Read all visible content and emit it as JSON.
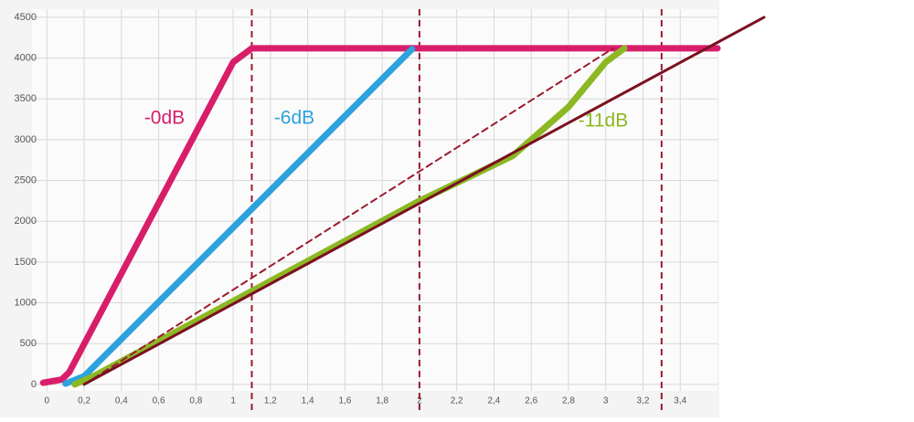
{
  "chart_data": {
    "type": "line",
    "xlim": [
      -0.08,
      3.6
    ],
    "ylim": [
      -80,
      4600
    ],
    "xticks": [
      0,
      {
        "value": 0.2,
        "label": "0,2"
      },
      {
        "value": 0.4,
        "label": "0,4"
      },
      {
        "value": 0.6,
        "label": "0,6"
      },
      {
        "value": 0.8,
        "label": "0,8"
      },
      1,
      {
        "value": 1.2,
        "label": "1,2"
      },
      {
        "value": 1.4,
        "label": "1,4"
      },
      {
        "value": 1.6,
        "label": "1,6"
      },
      {
        "value": 1.8,
        "label": "1,8"
      },
      2,
      {
        "value": 2.2,
        "label": "2,2"
      },
      {
        "value": 2.4,
        "label": "2,4"
      },
      {
        "value": 2.6,
        "label": "2,6"
      },
      {
        "value": 2.8,
        "label": "2,8"
      },
      3,
      {
        "value": 3.2,
        "label": "3,2"
      },
      {
        "value": 3.4,
        "label": "3,4"
      }
    ],
    "yticks": [
      0,
      500,
      1000,
      1500,
      2000,
      2500,
      3000,
      3500,
      4000,
      4500
    ],
    "grid": true,
    "vlines": [
      1.1,
      2,
      3.3
    ],
    "vline_color": "#9b1b30",
    "series": [
      {
        "name": "-0dB",
        "color": "#d81e6a",
        "width": 7,
        "x": [
          -0.02,
          0.08,
          0.12,
          1.0,
          1.1,
          3.6
        ],
        "values": [
          20,
          60,
          150,
          3950,
          4120,
          4120
        ]
      },
      {
        "name": "-6dB",
        "color": "#2da2dc",
        "width": 7,
        "x": [
          0.1,
          0.2,
          1.96
        ],
        "values": [
          10,
          100,
          4110
        ]
      },
      {
        "name": "-11dB",
        "color": "#8cb823",
        "width": 7,
        "x": [
          0.15,
          0.25,
          2.0,
          2.5,
          2.8,
          3.0,
          3.1
        ],
        "values": [
          0,
          100,
          2250,
          2800,
          3400,
          3950,
          4120
        ]
      },
      {
        "color": "#9b1b30",
        "width": 2,
        "dash": true,
        "x": [
          0.2,
          3.04
        ],
        "values": [
          0,
          4120
        ]
      },
      {
        "color": "#7b1020",
        "width": 3,
        "x": [
          0.2,
          3.85
        ],
        "values": [
          0,
          4500
        ]
      }
    ]
  }
}
